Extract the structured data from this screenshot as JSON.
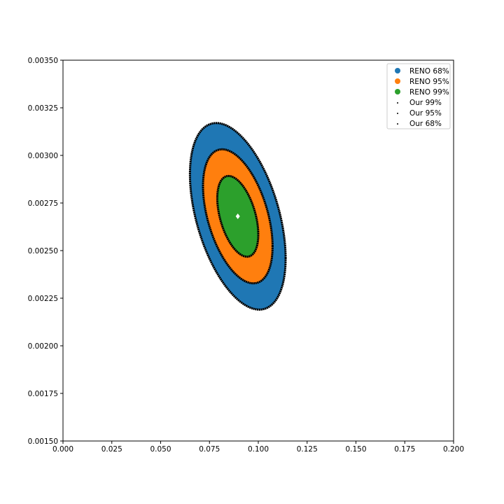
{
  "chart_data": {
    "type": "scatter",
    "title": "",
    "xlabel": "",
    "ylabel": "",
    "xlim": [
      0.0,
      0.2
    ],
    "ylim": [
      0.0015,
      0.0035
    ],
    "x_ticks": [
      "0.000",
      "0.025",
      "0.050",
      "0.075",
      "0.100",
      "0.125",
      "0.150",
      "0.175",
      "0.200"
    ],
    "x_tick_values": [
      0.0,
      0.025,
      0.05,
      0.075,
      0.1,
      0.125,
      0.15,
      0.175,
      0.2
    ],
    "y_ticks": [
      "0.00150",
      "0.00175",
      "0.00200",
      "0.00225",
      "0.00250",
      "0.00275",
      "0.00300",
      "0.00325",
      "0.00350"
    ],
    "y_tick_values": [
      0.0015,
      0.00175,
      0.002,
      0.00225,
      0.0025,
      0.00275,
      0.003,
      0.00325,
      0.0035
    ],
    "grid": false,
    "legend_position": "top-right",
    "center": [
      0.0895,
      0.00268
    ],
    "series": [
      {
        "name": "RENO 68%",
        "kind": "region",
        "color": "#1f77b4",
        "x_half_width": 0.0245,
        "y_half_height": 0.00049,
        "correlation": -0.45
      },
      {
        "name": "RENO 95%",
        "kind": "region",
        "color": "#ff7f0e",
        "x_half_width": 0.0178,
        "y_half_height": 0.000352,
        "correlation": -0.45
      },
      {
        "name": "RENO 99%",
        "kind": "region",
        "color": "#2ca02c",
        "x_half_width": 0.0105,
        "y_half_height": 0.000212,
        "correlation": -0.45
      },
      {
        "name": "Our 99%",
        "kind": "contour",
        "color": "#000000",
        "x_half_width": 0.0245,
        "y_half_height": 0.00049,
        "correlation": -0.45
      },
      {
        "name": "Our 95%",
        "kind": "contour",
        "color": "#000000",
        "x_half_width": 0.0178,
        "y_half_height": 0.000352,
        "correlation": -0.45
      },
      {
        "name": "Our 68%",
        "kind": "contour",
        "color": "#000000",
        "x_half_width": 0.0105,
        "y_half_height": 0.000212,
        "correlation": -0.45
      }
    ],
    "best_fit_point": {
      "x": 0.0895,
      "y": 0.00268,
      "color": "#ffffff"
    }
  }
}
